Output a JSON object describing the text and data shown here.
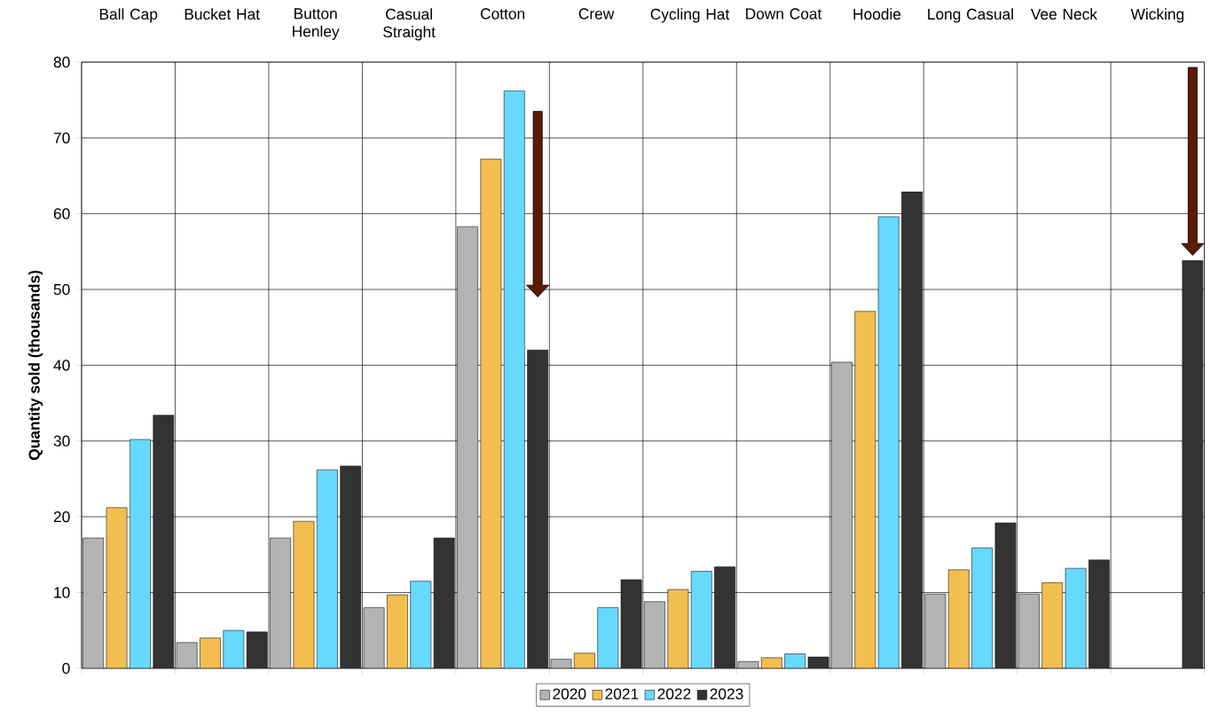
{
  "chart_data": {
    "type": "bar",
    "ylabel": "Quantity sold (thousands)",
    "categories": [
      "Ball Cap",
      "Bucket Hat",
      "Button Henley",
      "Casual Straight",
      "Cotton",
      "Crew",
      "Cycling Hat",
      "Down Coat",
      "Hoodie",
      "Long Casual",
      "Vee Neck",
      "Wicking"
    ],
    "series": [
      {
        "name": "2020",
        "color": "#b3b3b3",
        "values": [
          17.2,
          3.4,
          17.2,
          8.0,
          58.3,
          1.2,
          8.8,
          0.9,
          40.4,
          9.8,
          9.8,
          null
        ]
      },
      {
        "name": "2021",
        "color": "#f2be4f",
        "values": [
          21.2,
          4.0,
          19.4,
          9.7,
          67.2,
          2.0,
          10.4,
          1.4,
          47.1,
          13.0,
          11.3,
          null
        ]
      },
      {
        "name": "2022",
        "color": "#66d9ff",
        "values": [
          30.2,
          5.0,
          26.2,
          11.5,
          76.2,
          8.0,
          12.8,
          1.9,
          59.6,
          15.9,
          13.2,
          null
        ]
      },
      {
        "name": "2023",
        "color": "#333333",
        "values": [
          33.4,
          4.8,
          26.7,
          17.2,
          42.0,
          11.7,
          13.4,
          1.5,
          62.9,
          19.2,
          14.3,
          53.8
        ]
      }
    ],
    "ylim": [
      0,
      80
    ],
    "yticks": [
      0,
      10,
      20,
      30,
      40,
      50,
      60,
      70,
      80
    ],
    "grid": true,
    "legend": "bottom"
  }
}
